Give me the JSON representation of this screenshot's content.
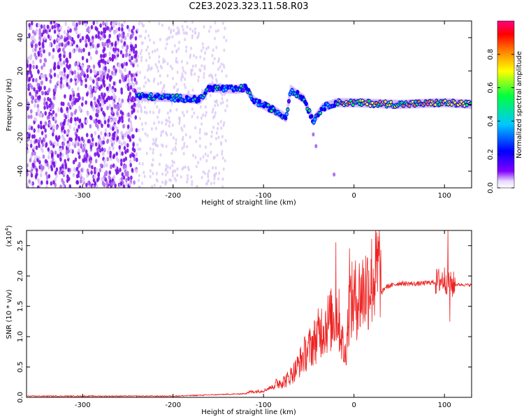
{
  "title": "C2E3.2023.323.11.58.R03",
  "chart_data": [
    {
      "type": "heatmap",
      "xlabel": "Height of straight line (km)",
      "ylabel": "Frequency (Hz)",
      "xlim": [
        -362,
        130
      ],
      "ylim": [
        -50,
        50
      ],
      "xticks": [
        -300,
        -200,
        -100,
        0,
        100
      ],
      "yticks": [
        -40,
        -20,
        0,
        20,
        40
      ],
      "colorbar": {
        "label": "Normalized spectral amplitude",
        "range": [
          0.0,
          1.0
        ],
        "ticks": [
          0.0,
          0.2,
          0.4,
          0.6,
          0.8
        ],
        "colors": [
          "#ffffff",
          "#8000ff",
          "#0000ff",
          "#00c8ff",
          "#00ff40",
          "#ffff00",
          "#ff8000",
          "#ff0000",
          "#ff0080"
        ]
      },
      "ridge": [
        {
          "x": -240,
          "f": 5
        },
        {
          "x": -200,
          "f": 4
        },
        {
          "x": -170,
          "f": 3
        },
        {
          "x": -160,
          "f": 10
        },
        {
          "x": -130,
          "f": 9
        },
        {
          "x": -120,
          "f": 10
        },
        {
          "x": -110,
          "f": 2
        },
        {
          "x": -90,
          "f": -3
        },
        {
          "x": -75,
          "f": -8
        },
        {
          "x": -70,
          "f": 9
        },
        {
          "x": -55,
          "f": 3
        },
        {
          "x": -45,
          "f": -10
        },
        {
          "x": -35,
          "f": -2
        },
        {
          "x": -20,
          "f": 1
        },
        {
          "x": 0,
          "f": 1
        },
        {
          "x": 50,
          "f": 0
        },
        {
          "x": 100,
          "f": 1
        },
        {
          "x": 130,
          "f": 0
        }
      ],
      "noise_region": {
        "x": [
          -362,
          -240
        ],
        "f": [
          -50,
          50
        ]
      }
    },
    {
      "type": "line",
      "xlabel": "Height of straight line (km)",
      "ylabel": "SNR (10 * v/v)",
      "y_multiplier": "(x10^4)",
      "xlim": [
        -362,
        130
      ],
      "ylim": [
        0,
        2.75
      ],
      "xticks": [
        -300,
        -200,
        -100,
        0,
        100
      ],
      "yticks": [
        0.0,
        0.5,
        1.0,
        1.5,
        2.0,
        2.5
      ],
      "line_color": "#ee2222",
      "series": [
        {
          "values": [
            {
              "x": -362,
              "y": 0.01
            },
            {
              "x": -300,
              "y": 0.01
            },
            {
              "x": -200,
              "y": 0.01
            },
            {
              "x": -160,
              "y": 0.03
            },
            {
              "x": -120,
              "y": 0.05
            },
            {
              "x": -100,
              "y": 0.08
            },
            {
              "x": -85,
              "y": 0.18
            },
            {
              "x": -75,
              "y": 0.22
            },
            {
              "x": -65,
              "y": 0.35
            },
            {
              "x": -55,
              "y": 0.55
            },
            {
              "x": -45,
              "y": 0.7
            },
            {
              "x": -35,
              "y": 0.9
            },
            {
              "x": -25,
              "y": 1.0
            },
            {
              "x": -18,
              "y": 1.1
            },
            {
              "x": -10,
              "y": 0.5
            },
            {
              "x": -5,
              "y": 1.2
            },
            {
              "x": 5,
              "y": 1.3
            },
            {
              "x": 15,
              "y": 1.45
            },
            {
              "x": 25,
              "y": 1.6
            },
            {
              "x": 35,
              "y": 1.82
            },
            {
              "x": 50,
              "y": 1.88
            },
            {
              "x": 70,
              "y": 1.87
            },
            {
              "x": 90,
              "y": 1.9
            },
            {
              "x": 100,
              "y": 1.95
            },
            {
              "x": 107,
              "y": 1.85
            },
            {
              "x": 115,
              "y": 1.86
            },
            {
              "x": 130,
              "y": 1.85
            }
          ]
        }
      ],
      "peaks": [
        {
          "x": -20,
          "y": 2.55
        },
        {
          "x": -5,
          "y": 2.45
        },
        {
          "x": 104,
          "y": 2.75
        },
        {
          "x": 106,
          "y": 1.25
        }
      ]
    }
  ]
}
